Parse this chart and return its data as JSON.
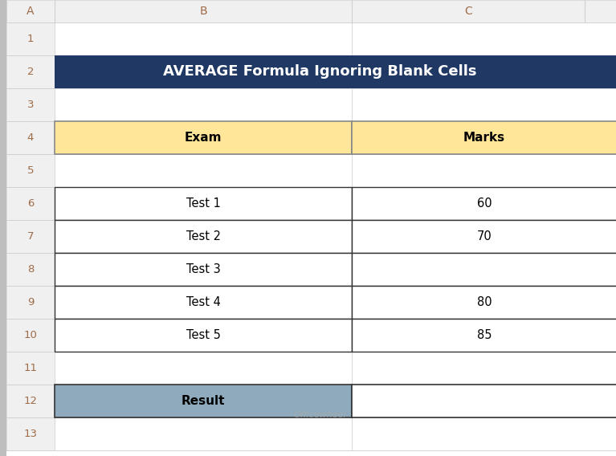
{
  "title": "AVERAGE Formula Ignoring Blank Cells",
  "title_bg": "#1F3864",
  "title_text_color": "#FFFFFF",
  "header_row": [
    "Exam",
    "Marks"
  ],
  "header_bg": "#FFE699",
  "data_rows": [
    [
      "Test 1",
      "60"
    ],
    [
      "Test 2",
      "70"
    ],
    [
      "Test 3",
      ""
    ],
    [
      "Test 4",
      "80"
    ],
    [
      "Test 5",
      "85"
    ]
  ],
  "result_label": "Result",
  "result_bg": "#8FAABC",
  "bg_color": "#FFFFFF",
  "col_header_bg": "#F0F0F0",
  "row_num_bg": "#F0F0F0",
  "col_header_text": "#9E6B47",
  "row_num_text": "#9E6B47",
  "grid_color": "#D0D0D0",
  "left_strip_color": "#BEBEBE",
  "watermark": "Officewheel"
}
